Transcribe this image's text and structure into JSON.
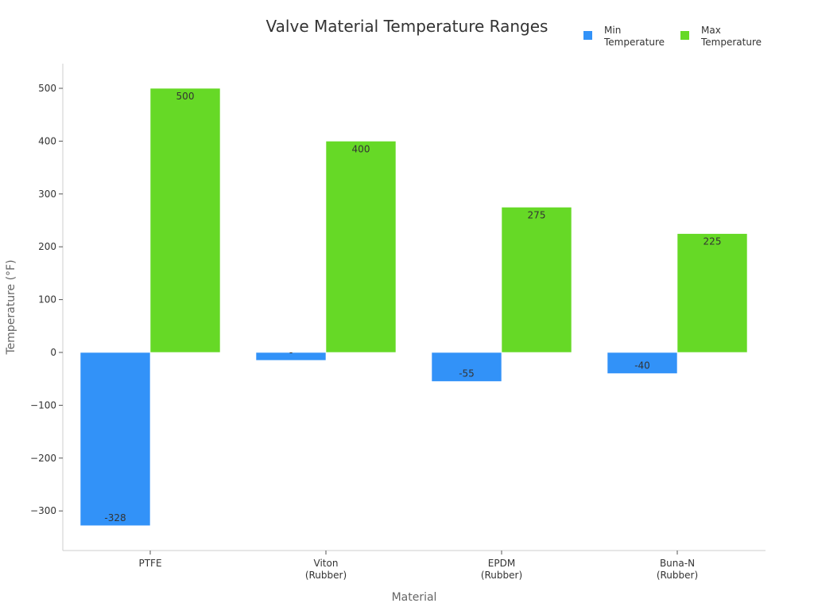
{
  "chart_data": {
    "type": "bar",
    "title": "Valve Material Temperature Ranges",
    "xlabel": "Material",
    "ylabel": "Temperature (°F)",
    "categories": [
      [
        "PTFE"
      ],
      [
        "Viton",
        "(Rubber)"
      ],
      [
        "EPDM",
        "(Rubber)"
      ],
      [
        "Buna-N",
        "(Rubber)"
      ]
    ],
    "series": [
      {
        "name": "Min Temperature",
        "legend_lines": [
          "Min",
          "Temperature"
        ],
        "color": "#3292f8",
        "values": [
          -328,
          -15,
          -55,
          -40
        ],
        "labels": [
          "-328",
          "-",
          "-55",
          "-40"
        ]
      },
      {
        "name": "Max Temperature",
        "legend_lines": [
          "Max",
          "Temperature"
        ],
        "color": "#66d926",
        "values": [
          500,
          400,
          275,
          225
        ],
        "labels": [
          "500",
          "400",
          "275",
          "225"
        ]
      }
    ],
    "ylim": [
      -375,
      545
    ],
    "yticks": [
      -300,
      -200,
      -100,
      0,
      100,
      200,
      300,
      400,
      500
    ],
    "ytick_labels": [
      "−300",
      "−200",
      "−100",
      "0",
      "100",
      "200",
      "300",
      "400",
      "500"
    ],
    "grid": false,
    "legend_position": "top-right"
  }
}
